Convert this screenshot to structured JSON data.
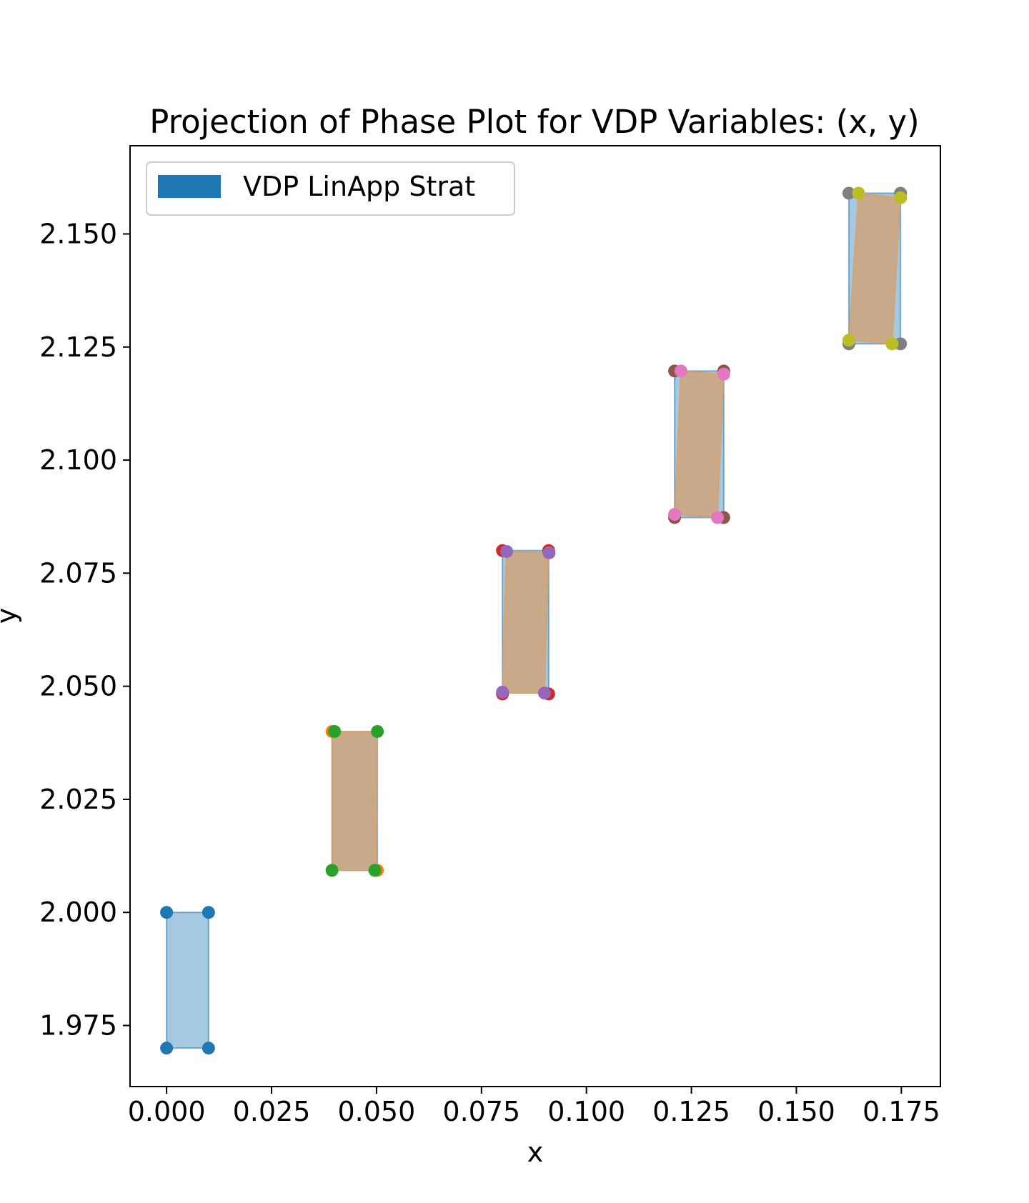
{
  "chart_data": {
    "type": "scatter",
    "title": "Projection of Phase Plot for VDP Variables: (x, y)",
    "xlabel": "x",
    "ylabel": "y",
    "xlim": [
      -0.0087,
      0.1843
    ],
    "ylim": [
      1.9615,
      2.1695
    ],
    "xticks": [
      "0.000",
      "0.025",
      "0.050",
      "0.075",
      "0.100",
      "0.125",
      "0.150",
      "0.175"
    ],
    "yticks": [
      "1.975",
      "2.000",
      "2.025",
      "2.050",
      "2.075",
      "2.100",
      "2.125",
      "2.150"
    ],
    "grid": false,
    "legend": {
      "placement": "top-left",
      "entries": [
        {
          "label": "VDP LinApp Strat",
          "color": "#1f77b4"
        }
      ]
    },
    "colors": {
      "blue_fill": "#1f77b4",
      "tan_fill": "#c8aa8a",
      "tan_edge": "#e29b5b"
    },
    "blue_boxes": [
      {
        "x": [
          0.0,
          0.01
        ],
        "y": [
          1.97,
          2.0
        ]
      },
      {
        "x": [
          0.0394,
          0.0502
        ],
        "y": [
          2.0093,
          2.04
        ]
      },
      {
        "x": [
          0.08,
          0.091
        ],
        "y": [
          2.0485,
          2.08
        ]
      },
      {
        "x": [
          0.121,
          0.1327
        ],
        "y": [
          2.0873,
          2.1197
        ]
      },
      {
        "x": [
          0.1625,
          0.1748
        ],
        "y": [
          2.1257,
          2.159
        ]
      }
    ],
    "tan_polygons": [
      [
        [
          0.0394,
          2.04
        ],
        [
          0.0502,
          2.04
        ],
        [
          0.05,
          2.0093
        ],
        [
          0.0394,
          2.0093
        ]
      ],
      [
        [
          0.0809,
          2.0798
        ],
        [
          0.091,
          2.0795
        ],
        [
          0.09,
          2.0485
        ],
        [
          0.08,
          2.0485
        ]
      ],
      [
        [
          0.1225,
          2.1197
        ],
        [
          0.1327,
          2.119
        ],
        [
          0.1312,
          2.0873
        ],
        [
          0.121,
          2.088
        ]
      ],
      [
        [
          0.1648,
          2.159
        ],
        [
          0.1748,
          2.158
        ],
        [
          0.1728,
          2.1257
        ],
        [
          0.1625,
          2.1265
        ]
      ]
    ],
    "series": [
      {
        "color": "#1f77b4",
        "points": [
          [
            0.0,
            2.0
          ],
          [
            0.01,
            2.0
          ],
          [
            0.0,
            1.97
          ],
          [
            0.01,
            1.97
          ]
        ]
      },
      {
        "color": "#ff7f0e",
        "points": [
          [
            0.0394,
            2.04
          ],
          [
            0.0502,
            2.0093
          ]
        ]
      },
      {
        "color": "#2ca02c",
        "points": [
          [
            0.04,
            2.04
          ],
          [
            0.0502,
            2.04
          ],
          [
            0.0394,
            2.0093
          ],
          [
            0.0496,
            2.0093
          ]
        ]
      },
      {
        "color": "#d62728",
        "points": [
          [
            0.08,
            2.08
          ],
          [
            0.091,
            2.08
          ],
          [
            0.08,
            2.0483
          ],
          [
            0.091,
            2.0483
          ]
        ]
      },
      {
        "color": "#9467bd",
        "points": [
          [
            0.081,
            2.0798
          ],
          [
            0.0911,
            2.0795
          ],
          [
            0.08,
            2.0487
          ],
          [
            0.09,
            2.0485
          ]
        ]
      },
      {
        "color": "#8c564b",
        "points": [
          [
            0.121,
            2.1197
          ],
          [
            0.1327,
            2.1197
          ],
          [
            0.121,
            2.0873
          ],
          [
            0.1327,
            2.0873
          ]
        ]
      },
      {
        "color": "#e377c2",
        "points": [
          [
            0.1225,
            2.1197
          ],
          [
            0.1327,
            2.119
          ],
          [
            0.121,
            2.088
          ],
          [
            0.1312,
            2.0873
          ]
        ]
      },
      {
        "color": "#7f7f7f",
        "points": [
          [
            0.1625,
            2.159
          ],
          [
            0.1748,
            2.159
          ],
          [
            0.1625,
            2.1257
          ],
          [
            0.1748,
            2.1257
          ]
        ]
      },
      {
        "color": "#bcbd22",
        "points": [
          [
            0.1648,
            2.159
          ],
          [
            0.1748,
            2.158
          ],
          [
            0.1625,
            2.1265
          ],
          [
            0.1728,
            2.1257
          ]
        ]
      }
    ]
  }
}
